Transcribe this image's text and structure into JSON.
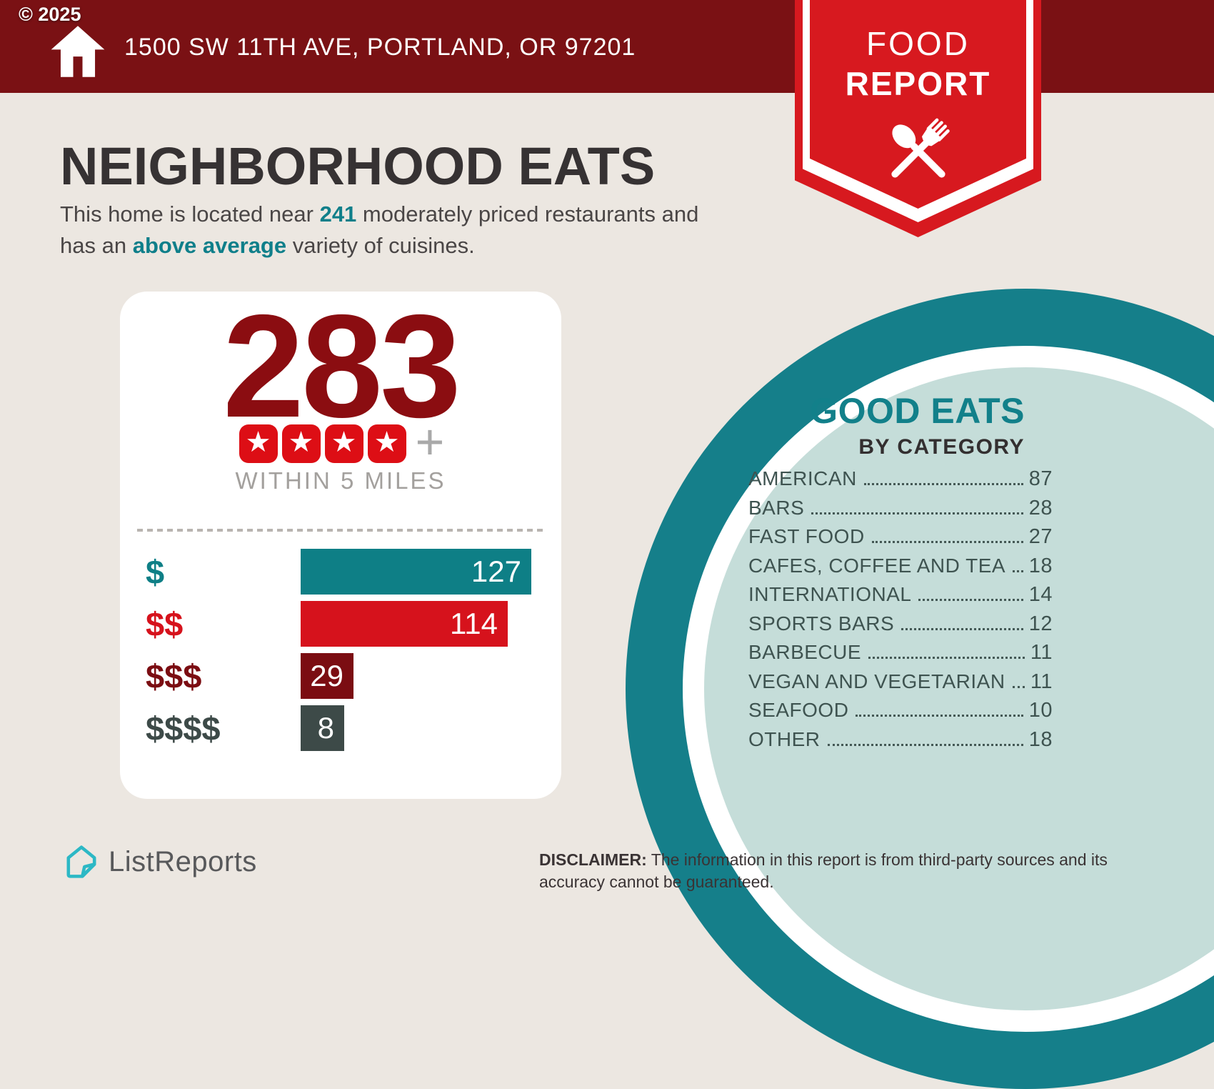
{
  "colors": {
    "header_maroon": "#7a1114",
    "ribbon_red": "#d7191f",
    "star_red": "#dd0e15",
    "total_maroon": "#8b0d11",
    "accent_teal": "#0f7f8a",
    "circle_teal": "#157f8a",
    "circle_pale": "#c5ddd9",
    "background_beige": "#ece7e1"
  },
  "header": {
    "copyright": "© 2025",
    "address": "1500 SW 11TH AVE, PORTLAND, OR 97201"
  },
  "ribbon": {
    "line1": "FOOD",
    "line2": "REPORT"
  },
  "intro": {
    "title": "NEIGHBORHOOD EATS",
    "line1_pre": "This home is located near ",
    "count": "241",
    "line1_post": " moderately priced restaurants and",
    "line2_pre": "has an ",
    "highlight": "above average",
    "line2_post": " variety of cuisines."
  },
  "summary": {
    "total": "283",
    "star_count": 4,
    "plus": "+",
    "caption": "WITHIN 5 MILES"
  },
  "chart_data": [
    {
      "type": "bar",
      "orientation": "horizontal",
      "title": "WITHIN 5 MILES",
      "categories": [
        "$",
        "$$",
        "$$$",
        "$$$$"
      ],
      "values": [
        127,
        114,
        29,
        8
      ],
      "colors": [
        "#0e7f86",
        "#d6121c",
        "#7b0d12",
        "#3d4a48"
      ],
      "value_labels_inside": true,
      "xlim": [
        0,
        134
      ],
      "grid": false,
      "legend": false
    },
    {
      "type": "table",
      "title": "GOOD EATS BY CATEGORY",
      "categories": [
        "AMERICAN",
        "BARS",
        "FAST FOOD",
        "CAFES, COFFEE AND TEA",
        "INTERNATIONAL",
        "SPORTS BARS",
        "BARBECUE",
        "VEGAN AND VEGETARIAN",
        "SEAFOOD",
        "OTHER"
      ],
      "values": [
        87,
        28,
        27,
        18,
        14,
        12,
        11,
        11,
        10,
        18
      ]
    }
  ],
  "good_eats": {
    "title": "GOOD EATS",
    "subtitle": "BY CATEGORY",
    "items": [
      {
        "label": "AMERICAN",
        "value": "87"
      },
      {
        "label": "BARS",
        "value": "28"
      },
      {
        "label": "FAST FOOD",
        "value": "27"
      },
      {
        "label": "CAFES, COFFEE AND TEA",
        "value": "18"
      },
      {
        "label": "INTERNATIONAL",
        "value": "14"
      },
      {
        "label": "SPORTS BARS",
        "value": "12"
      },
      {
        "label": "BARBECUE",
        "value": "11"
      },
      {
        "label": "VEGAN AND VEGETARIAN",
        "value": "11"
      },
      {
        "label": "SEAFOOD",
        "value": "10"
      },
      {
        "label": "OTHER",
        "value": "18"
      }
    ]
  },
  "footer": {
    "brand": "ListReports",
    "disclaimer_label": "DISCLAIMER:",
    "disclaimer_line1": "The information in this report is from third-party sources and its",
    "disclaimer_line2": "accuracy cannot be guaranteed."
  }
}
